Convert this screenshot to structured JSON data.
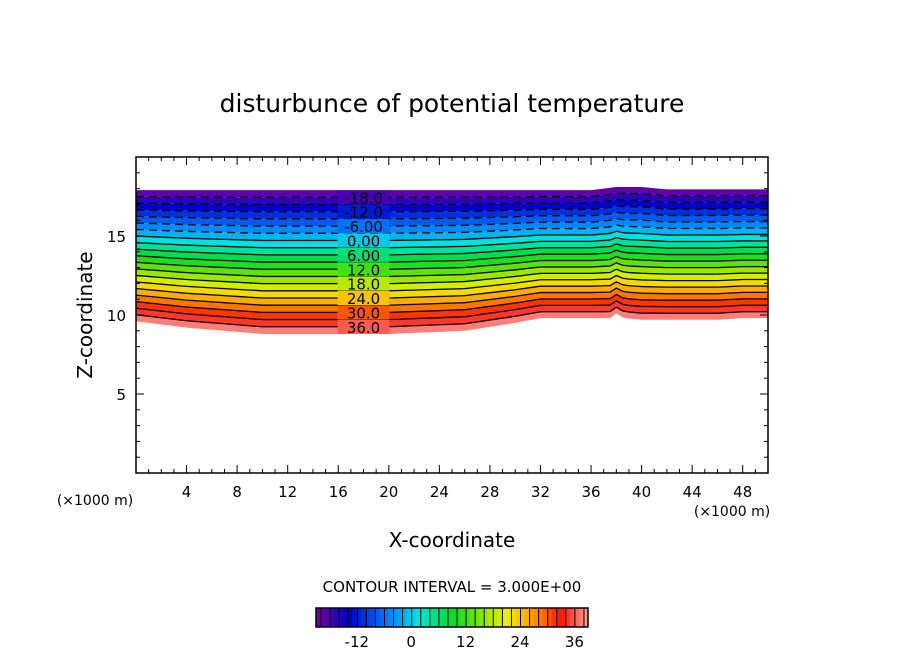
{
  "chart_data": {
    "type": "contour",
    "title": "disturbunce of potential temperature",
    "xlabel": "X-coordinate",
    "ylabel": "Z-coordinate",
    "x_unit_label": "(×1000 m)",
    "y_unit_label": "(×1000 m)",
    "xlim": [
      0,
      50
    ],
    "ylim": [
      0,
      20
    ],
    "xticks": [
      4,
      8,
      12,
      16,
      20,
      24,
      28,
      32,
      36,
      40,
      44,
      48
    ],
    "yticks": [
      5,
      10,
      15
    ],
    "contour_interval_text": "CONTOUR INTERVAL = 3.000E+00",
    "level_min": -21,
    "level_max": 39,
    "level_step": 3,
    "contour_labels": [
      "-18.0",
      "-12.0",
      "-6.00",
      "0.00",
      "6.00",
      "12.0",
      "18.0",
      "24.0",
      "30.0",
      "36.0"
    ],
    "negative_contours": "dashed",
    "field_top_profile": {
      "x": [
        0,
        36,
        38,
        40,
        42,
        50
      ],
      "z": [
        17.9,
        17.9,
        18.1,
        18.1,
        17.95,
        17.95
      ]
    },
    "field_bottom_profile": {
      "x": [
        0,
        4,
        10,
        20,
        26,
        30,
        32,
        36,
        37.5,
        38,
        38.6,
        40,
        46,
        48,
        50
      ],
      "z": [
        9.6,
        9.2,
        8.8,
        8.8,
        9.0,
        9.5,
        9.8,
        9.8,
        9.8,
        10.1,
        9.8,
        9.7,
        9.7,
        9.8,
        9.8
      ]
    },
    "colorbar": {
      "ticks": [
        -12,
        0,
        12,
        24,
        36
      ],
      "tick_labels": [
        "-12",
        "0",
        "12",
        "24",
        "36"
      ]
    }
  }
}
